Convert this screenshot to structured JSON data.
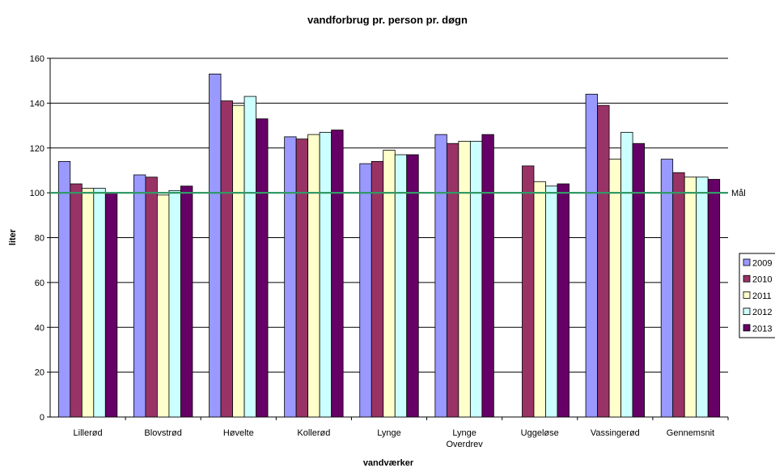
{
  "chart_data": {
    "type": "bar",
    "title": "vandforbrug pr. person pr. døgn",
    "xlabel": "vandværker",
    "ylabel": "liter",
    "ylim": [
      0,
      160
    ],
    "yticks": [
      0,
      20,
      40,
      60,
      80,
      100,
      120,
      140,
      160
    ],
    "grid": true,
    "legend_position": "right",
    "categories": [
      "Lillerød",
      "Blovstrød",
      "Høvelte",
      "Kollerød",
      "Lynge",
      "Lynge Overdrev",
      "Uggeløse",
      "Vassingerød",
      "Gennemsnit"
    ],
    "series": [
      {
        "name": "2009",
        "color": "#9999ff",
        "values": [
          114,
          108,
          153,
          125,
          113,
          126,
          null,
          144,
          115
        ]
      },
      {
        "name": "2010",
        "color": "#993366",
        "values": [
          104,
          107,
          141,
          124,
          114,
          122,
          112,
          139,
          109
        ]
      },
      {
        "name": "2011",
        "color": "#ffffcc",
        "values": [
          102,
          99,
          139,
          126,
          119,
          123,
          105,
          115,
          107
        ]
      },
      {
        "name": "2012",
        "color": "#ccffff",
        "values": [
          102,
          101,
          143,
          127,
          117,
          123,
          103,
          127,
          107
        ]
      },
      {
        "name": "2013",
        "color": "#660066",
        "values": [
          100,
          103,
          133,
          128,
          117,
          126,
          104,
          122,
          106
        ]
      }
    ],
    "target_line": {
      "label": "Mål",
      "value": 100,
      "color": "#339966"
    }
  }
}
